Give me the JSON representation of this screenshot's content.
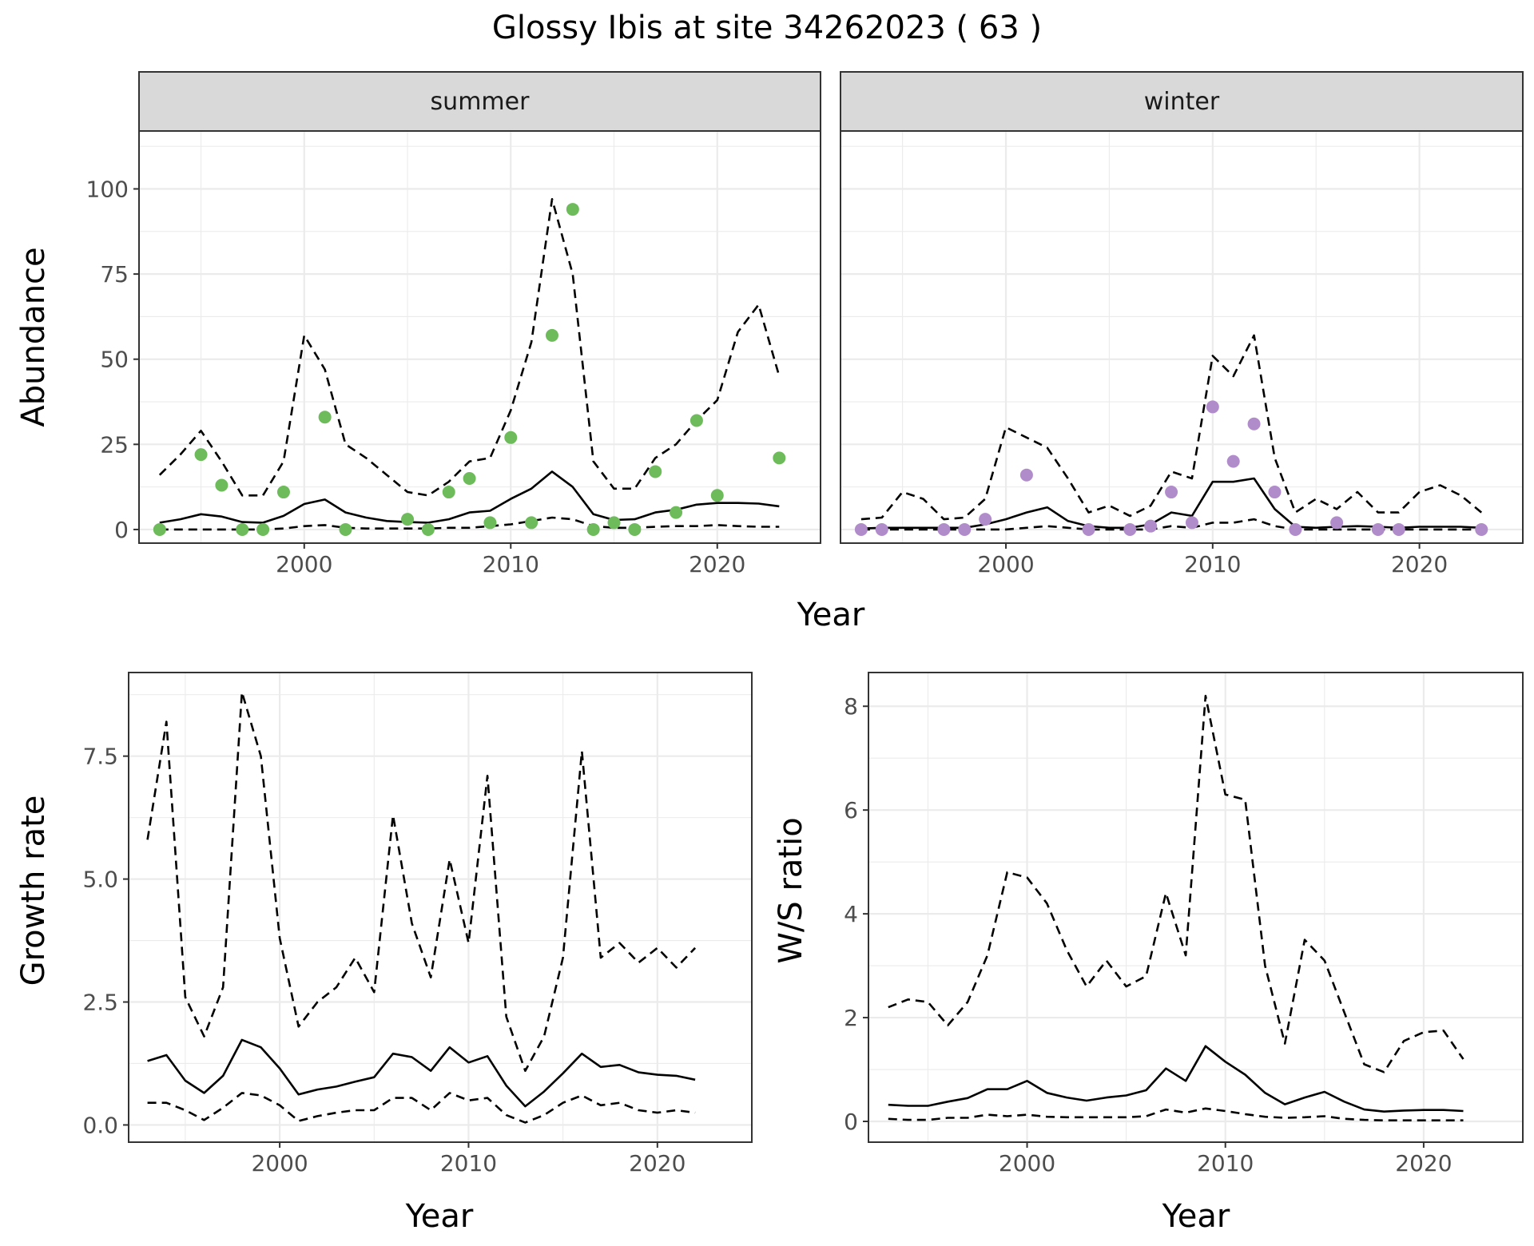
{
  "title": "Glossy Ibis at site 34262023 ( 63 )",
  "colors": {
    "summer_points": "#6dbb5a",
    "winter_points": "#b18ccb",
    "strip_fill": "#d9d9d9",
    "grid": "#ebebeb",
    "line": "#000000"
  },
  "chart_data": [
    {
      "id": "abundance",
      "type": "line",
      "ylabel": "Abundance",
      "xlabel": "Year",
      "xlim": [
        1992,
        2025
      ],
      "ylim": [
        -4,
        117
      ],
      "x_ticks": [
        2000,
        2010,
        2020
      ],
      "y_ticks": [
        0,
        25,
        50,
        75,
        100
      ],
      "grid": true,
      "panels": [
        {
          "strip": "summer",
          "x": [
            1993,
            1994,
            1995,
            1996,
            1997,
            1998,
            1999,
            2000,
            2001,
            2002,
            2003,
            2004,
            2005,
            2006,
            2007,
            2008,
            2009,
            2010,
            2011,
            2012,
            2013,
            2014,
            2015,
            2016,
            2017,
            2018,
            2019,
            2020,
            2021,
            2022,
            2023
          ],
          "lines": [
            {
              "style": "solid",
              "values": [
                2,
                3,
                4.5,
                3.8,
                2.2,
                2,
                4,
                7.5,
                8.8,
                5,
                3.5,
                2.5,
                2.2,
                2,
                3,
                5,
                5.5,
                9,
                12,
                17,
                12.5,
                4.5,
                2.8,
                3,
                5,
                5.8,
                7.3,
                7.8,
                7.8,
                7.6,
                6.8
              ]
            },
            {
              "style": "dashed",
              "values": [
                16,
                22,
                29,
                20,
                10,
                10,
                20,
                57,
                47,
                25,
                21,
                16,
                11,
                10,
                14,
                20,
                21,
                35,
                55,
                97,
                75,
                20,
                12,
                12,
                21,
                25,
                32,
                38,
                58,
                66,
                45
              ]
            },
            {
              "style": "dashed",
              "values": [
                0,
                0,
                0,
                0,
                0,
                0,
                0.3,
                1,
                1.3,
                0.5,
                0.3,
                0.3,
                0.3,
                0.3,
                0.5,
                0.5,
                1,
                1.5,
                2.5,
                3.5,
                3,
                1,
                0.5,
                0.5,
                0.8,
                1,
                1,
                1.3,
                1,
                0.8,
                0.8
              ]
            }
          ],
          "points": {
            "x": [
              1993,
              1995,
              1996,
              1997,
              1998,
              1999,
              2001,
              2002,
              2005,
              2006,
              2007,
              2008,
              2009,
              2010,
              2011,
              2012,
              2013,
              2014,
              2015,
              2016,
              2017,
              2018,
              2019,
              2020,
              2023
            ],
            "y": [
              0,
              22,
              13,
              0,
              0,
              11,
              33,
              0,
              3,
              0,
              11,
              15,
              2,
              27,
              2,
              57,
              94,
              0,
              2,
              0,
              17,
              5,
              32,
              10,
              21
            ]
          }
        },
        {
          "strip": "winter",
          "x": [
            1993,
            1994,
            1995,
            1996,
            1997,
            1998,
            1999,
            2000,
            2001,
            2002,
            2003,
            2004,
            2005,
            2006,
            2007,
            2008,
            2009,
            2010,
            2011,
            2012,
            2013,
            2014,
            2015,
            2016,
            2017,
            2018,
            2019,
            2020,
            2021,
            2022,
            2023
          ],
          "lines": [
            {
              "style": "solid",
              "values": [
                0.3,
                0.5,
                0.5,
                0.5,
                0.5,
                0.5,
                1.5,
                3,
                5,
                6.5,
                2.5,
                1,
                0.5,
                0.5,
                1.5,
                5,
                4,
                14,
                14,
                15,
                6,
                0.8,
                0.5,
                0.8,
                1,
                0.8,
                0.5,
                0.8,
                0.8,
                0.8,
                0.5
              ]
            },
            {
              "style": "dashed",
              "values": [
                3,
                3.5,
                11,
                9,
                3,
                3.5,
                9,
                30,
                27,
                24,
                15,
                5,
                7,
                4,
                7,
                17,
                15,
                51,
                45,
                57,
                21,
                5,
                9,
                6,
                11,
                5,
                5,
                11,
                13,
                10,
                5
              ]
            },
            {
              "style": "dashed",
              "values": [
                0,
                0,
                0,
                0,
                0,
                0,
                0,
                0,
                0.5,
                1,
                0.5,
                0,
                0,
                0,
                0,
                1,
                0.5,
                2,
                2,
                3,
                1,
                0,
                0,
                0,
                0,
                0,
                0,
                0,
                0,
                0,
                0
              ]
            }
          ],
          "points": {
            "x": [
              1993,
              1994,
              1997,
              1998,
              1999,
              2001,
              2004,
              2006,
              2007,
              2008,
              2009,
              2010,
              2011,
              2012,
              2013,
              2014,
              2016,
              2018,
              2019,
              2023
            ],
            "y": [
              0,
              0,
              0,
              0,
              3,
              16,
              0,
              0,
              1,
              11,
              2,
              36,
              20,
              31,
              11,
              0,
              2,
              0,
              0,
              0
            ]
          }
        }
      ]
    },
    {
      "id": "growth",
      "type": "line",
      "ylabel": "Growth rate",
      "xlabel": "Year",
      "xlim": [
        1992,
        2025
      ],
      "ylim": [
        -0.35,
        9.2
      ],
      "x_ticks": [
        2000,
        2010,
        2020
      ],
      "y_ticks": [
        "0.0",
        "2.5",
        "5.0",
        "7.5"
      ],
      "grid": true,
      "x": [
        1993,
        1994,
        1995,
        1996,
        1997,
        1998,
        1999,
        2000,
        2001,
        2002,
        2003,
        2004,
        2005,
        2006,
        2007,
        2008,
        2009,
        2010,
        2011,
        2012,
        2013,
        2014,
        2015,
        2016,
        2017,
        2018,
        2019,
        2020,
        2021,
        2022
      ],
      "lines": [
        {
          "style": "solid",
          "values": [
            1.3,
            1.42,
            0.9,
            0.65,
            1,
            1.73,
            1.58,
            1.15,
            0.62,
            0.72,
            0.78,
            0.88,
            0.97,
            1.45,
            1.38,
            1.1,
            1.58,
            1.27,
            1.4,
            0.8,
            0.38,
            0.68,
            1.05,
            1.45,
            1.18,
            1.22,
            1.07,
            1.02,
            1.0,
            0.92
          ]
        },
        {
          "style": "dashed",
          "values": [
            5.8,
            8.2,
            2.6,
            1.8,
            2.8,
            8.8,
            7.5,
            3.8,
            2.0,
            2.5,
            2.8,
            3.4,
            2.7,
            6.3,
            4.1,
            3.0,
            5.4,
            3.7,
            7.1,
            2.2,
            1.1,
            1.8,
            3.4,
            7.6,
            3.4,
            3.7,
            3.3,
            3.6,
            3.2,
            3.6
          ]
        },
        {
          "style": "dashed",
          "values": [
            0.45,
            0.45,
            0.3,
            0.1,
            0.35,
            0.65,
            0.6,
            0.4,
            0.08,
            0.18,
            0.25,
            0.3,
            0.3,
            0.55,
            0.55,
            0.3,
            0.65,
            0.5,
            0.55,
            0.2,
            0.05,
            0.2,
            0.45,
            0.6,
            0.4,
            0.45,
            0.3,
            0.25,
            0.3,
            0.25
          ]
        }
      ]
    },
    {
      "id": "ws_ratio",
      "type": "line",
      "ylabel": "W/S ratio",
      "xlabel": "Year",
      "xlim": [
        1992,
        2025
      ],
      "ylim": [
        -0.4,
        8.65
      ],
      "x_ticks": [
        2000,
        2010,
        2020
      ],
      "y_ticks": [
        0,
        2,
        4,
        6,
        8
      ],
      "grid": true,
      "x": [
        1993,
        1994,
        1995,
        1996,
        1997,
        1998,
        1999,
        2000,
        2001,
        2002,
        2003,
        2004,
        2005,
        2006,
        2007,
        2008,
        2009,
        2010,
        2011,
        2012,
        2013,
        2014,
        2015,
        2016,
        2017,
        2018,
        2019,
        2020,
        2021,
        2022
      ],
      "lines": [
        {
          "style": "solid",
          "values": [
            0.32,
            0.3,
            0.3,
            0.38,
            0.45,
            0.62,
            0.62,
            0.78,
            0.55,
            0.46,
            0.4,
            0.46,
            0.5,
            0.6,
            1.02,
            0.78,
            1.45,
            1.15,
            0.9,
            0.55,
            0.33,
            0.46,
            0.57,
            0.38,
            0.23,
            0.19,
            0.21,
            0.22,
            0.22,
            0.2
          ]
        },
        {
          "style": "dashed",
          "values": [
            2.2,
            2.35,
            2.3,
            1.85,
            2.3,
            3.2,
            4.8,
            4.7,
            4.2,
            3.3,
            2.6,
            3.1,
            2.6,
            2.8,
            4.4,
            3.2,
            8.2,
            6.3,
            6.2,
            3.0,
            1.5,
            3.5,
            3.1,
            2.1,
            1.1,
            0.95,
            1.55,
            1.72,
            1.75,
            1.2
          ]
        },
        {
          "style": "dashed",
          "values": [
            0.05,
            0.03,
            0.03,
            0.07,
            0.07,
            0.13,
            0.1,
            0.13,
            0.09,
            0.08,
            0.08,
            0.08,
            0.08,
            0.1,
            0.23,
            0.17,
            0.25,
            0.2,
            0.14,
            0.09,
            0.07,
            0.08,
            0.1,
            0.05,
            0.03,
            0.02,
            0.02,
            0.02,
            0.02,
            0.02
          ]
        }
      ]
    }
  ]
}
